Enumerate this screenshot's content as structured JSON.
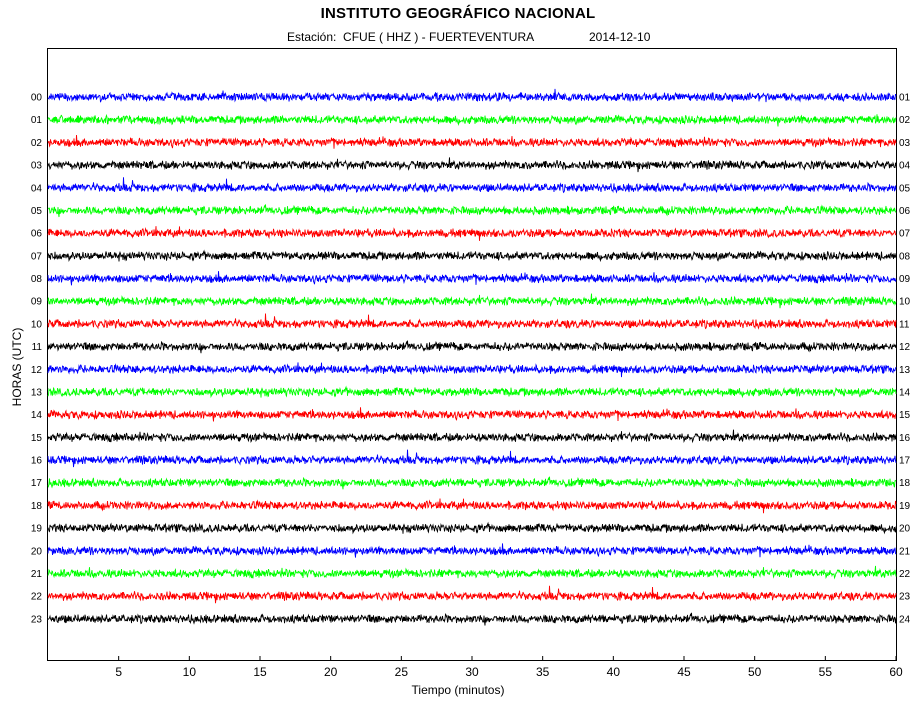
{
  "chart_data": {
    "type": "line",
    "title": "INSTITUTO GEOGRÁFICO NACIONAL",
    "subtitle": {
      "station": "Estación:  CFUE ( HHZ ) - FUERTEVENTURA",
      "date": "2014-12-10"
    },
    "xlabel": "Tiempo (minutos)",
    "ylabel": "HORAS (UTC)",
    "xlim": [
      0,
      60
    ],
    "x_ticks": [
      5,
      10,
      15,
      20,
      25,
      30,
      35,
      40,
      45,
      50,
      55,
      60
    ],
    "left_labels": [
      "00",
      "01",
      "02",
      "03",
      "04",
      "05",
      "06",
      "07",
      "08",
      "09",
      "10",
      "11",
      "12",
      "13",
      "14",
      "15",
      "16",
      "17",
      "18",
      "19",
      "20",
      "21",
      "22",
      "23"
    ],
    "right_labels": [
      "01",
      "02",
      "03",
      "04",
      "05",
      "06",
      "07",
      "08",
      "09",
      "10",
      "11",
      "12",
      "13",
      "14",
      "15",
      "16",
      "17",
      "18",
      "19",
      "20",
      "21",
      "22",
      "23",
      "24"
    ],
    "trace_colors": [
      "#0000ff",
      "#00ff00",
      "#ff0000",
      "#000000"
    ],
    "grid": false
  }
}
